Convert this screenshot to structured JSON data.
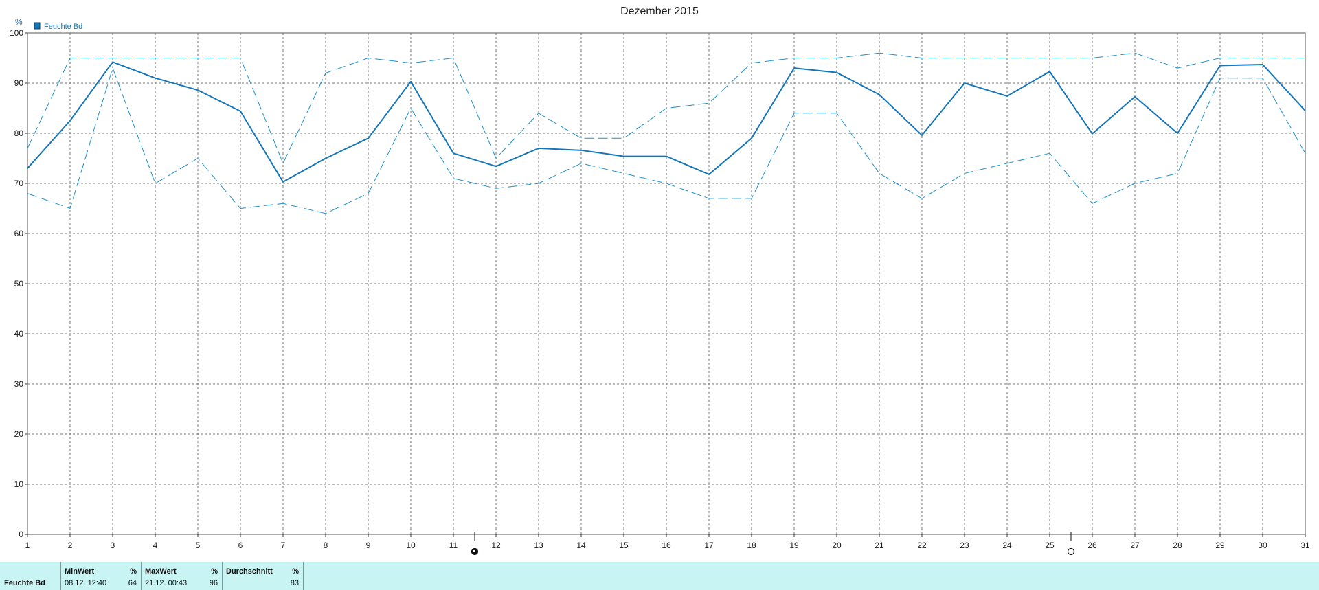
{
  "chart_data": {
    "type": "line",
    "title": "Dezember 2015",
    "ylabel": "%",
    "ylim": [
      0,
      100
    ],
    "yticks": [
      0,
      10,
      20,
      30,
      40,
      50,
      60,
      70,
      80,
      90,
      100
    ],
    "xlim": [
      1,
      31
    ],
    "x": [
      1,
      2,
      3,
      4,
      5,
      6,
      7,
      8,
      9,
      10,
      11,
      12,
      13,
      14,
      15,
      16,
      17,
      18,
      19,
      20,
      21,
      22,
      23,
      24,
      25,
      26,
      27,
      28,
      29,
      30,
      31
    ],
    "legend": [
      "Feuchte Bd"
    ],
    "legend_position": "top-left",
    "grid": true,
    "series": [
      {
        "name": "Feuchte Bd",
        "style": "solid",
        "color": "#1475b8",
        "values": [
          73,
          82.5,
          94.2,
          91,
          88.6,
          84.4,
          70.3,
          75,
          79,
          90.3,
          76,
          73.4,
          77,
          76.6,
          75.4,
          75.4,
          71.8,
          79,
          93,
          92.1,
          87.7,
          79.6,
          90,
          87.4,
          92.3,
          79.9,
          87.3,
          80,
          93.5,
          93.7,
          84.5
        ]
      },
      {
        "style": "dashed",
        "color": "#1d8fc8",
        "values": [
          77,
          95,
          95,
          95,
          95,
          95,
          74,
          92,
          95,
          94,
          95,
          75,
          84,
          79,
          79,
          85,
          86,
          94,
          95,
          95,
          96,
          95,
          95,
          95,
          95,
          95,
          96,
          93,
          95,
          95,
          95
        ]
      },
      {
        "style": "dashed",
        "color": "#1d8fc8",
        "values": [
          68,
          65,
          93,
          70,
          75,
          65,
          66,
          64,
          68,
          85,
          71,
          69,
          70,
          74,
          72,
          70,
          67,
          67,
          84,
          84,
          72,
          67,
          72,
          74,
          76,
          66,
          70,
          72,
          91,
          91,
          76
        ]
      }
    ],
    "moon_markers": [
      {
        "x": 11.5,
        "phase": "full"
      },
      {
        "x": 25.5,
        "phase": "new"
      }
    ]
  },
  "stats": {
    "row_label": "Feuchte Bd",
    "columns": [
      {
        "header": "MinWert",
        "unit": "%",
        "time": "08.12.  12:40",
        "value": "64"
      },
      {
        "header": "MaxWert",
        "unit": "%",
        "time": "21.12.  00:43",
        "value": "96"
      },
      {
        "header": "Durchschnitt",
        "unit": "%",
        "time": "",
        "value": "83"
      }
    ]
  }
}
